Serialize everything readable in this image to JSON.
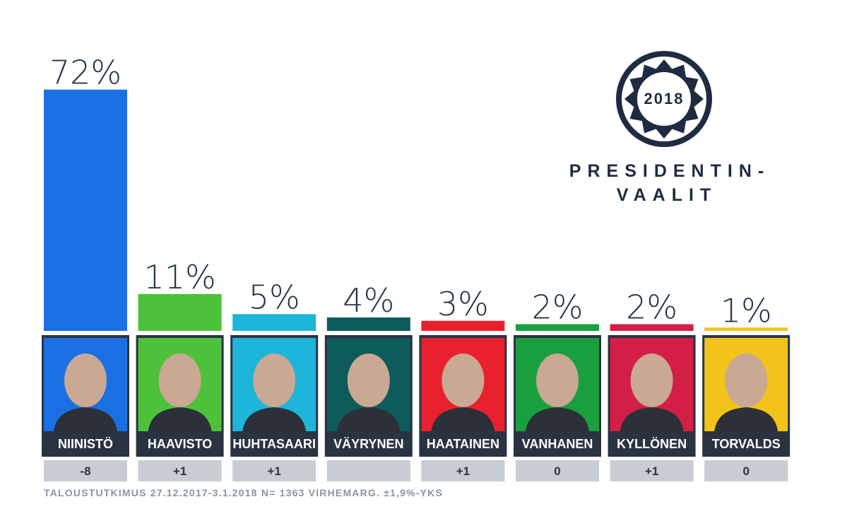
{
  "chart_data": {
    "type": "bar",
    "categories": [
      "NIINISTÖ",
      "HAAVISTO",
      "HUHTASAARI",
      "VÄYRYNEN",
      "HAATAINEN",
      "VANHANEN",
      "KYLLÖNEN",
      "TORVALDS"
    ],
    "values": [
      72,
      11,
      5,
      4,
      3,
      2,
      2,
      1
    ],
    "value_labels": [
      "72%",
      "11%",
      "5%",
      "4%",
      "3%",
      "2%",
      "2%",
      "1%"
    ],
    "colors": [
      "#1a6fe3",
      "#4cc23a",
      "#1db5d9",
      "#0e5b5c",
      "#e9212e",
      "#1a9f3f",
      "#d31e45",
      "#f2c31b"
    ],
    "changes": [
      "-8",
      "+1",
      "+1",
      null,
      "+1",
      "0",
      "+1",
      "0"
    ],
    "logo": {
      "year": "2018",
      "line1": "PRESIDENTIN-",
      "line2": "VAALIT"
    },
    "source": "TALOUSTUTKIMUS 27.12.2017-3.1.2018 N= 1363 VIRHEMARG. ±1,9%-YKS"
  }
}
